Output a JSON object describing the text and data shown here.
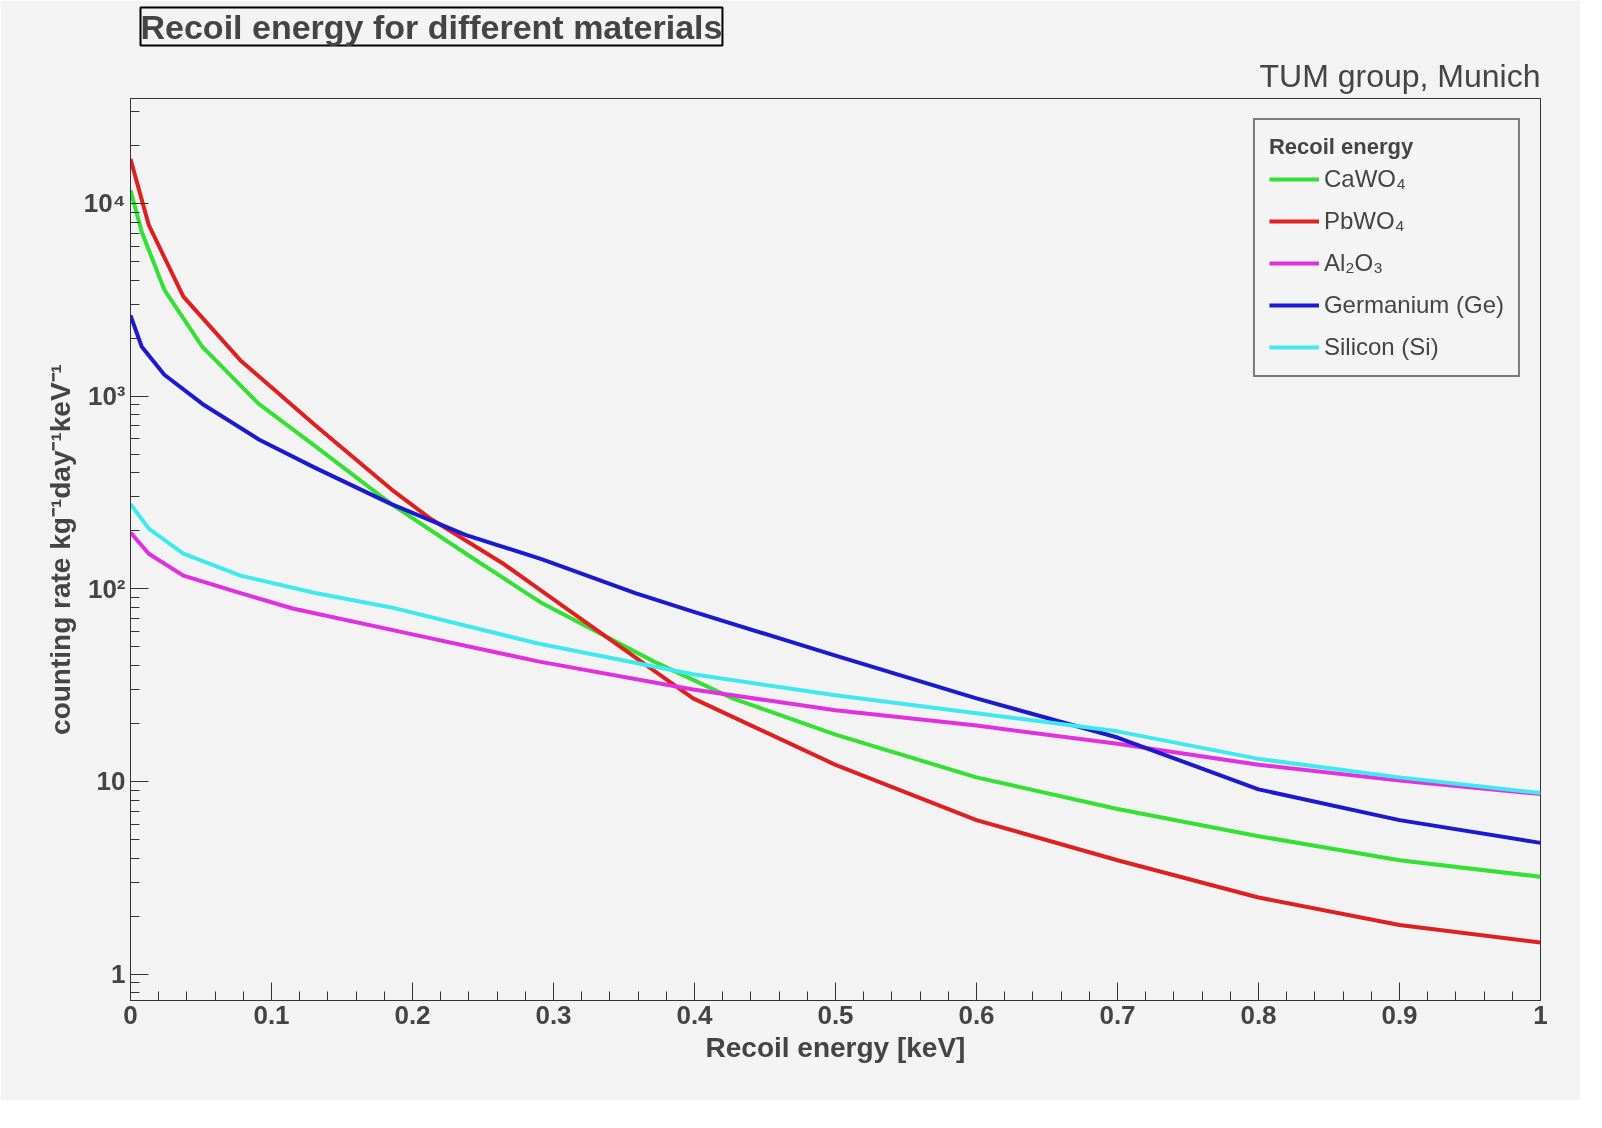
{
  "chart_data": {
    "type": "line",
    "title": "Recoil energy for different materials",
    "xlabel": "Recoil energy [keV]",
    "ylabel": "counting rate kg⁻¹day⁻¹keV⁻¹",
    "legend_title": "Recoil energy",
    "annotations": [
      "TUM group, Munich"
    ],
    "log": "y",
    "legend": "top right",
    "grid": false,
    "line_style": "solid",
    "xlim": [
      0,
      1
    ],
    "xticks": [
      0,
      0.1,
      0.2,
      0.3,
      0.4,
      0.5,
      0.6,
      0.7,
      0.8,
      0.9,
      1
    ],
    "ylim": [
      0.73,
      35000
    ],
    "yticks": [
      1,
      10,
      {
        "value": 100,
        "label": "10²"
      },
      {
        "value": 1000,
        "label": "10³"
      },
      {
        "value": 10000,
        "label": "10⁴"
      }
    ],
    "series": [
      {
        "name": "CaWO₄",
        "color": "#33e033",
        "x": [
          0,
          0.008,
          0.024,
          0.051,
          0.091,
          0.131,
          0.185,
          0.238,
          0.292,
          0.371,
          0.427,
          0.5,
          0.6,
          0.7,
          0.8,
          0.9,
          1
        ],
        "values": [
          11700,
          7100,
          3560,
          1800,
          910,
          550,
          275,
          152,
          84,
          42,
          27,
          17.5,
          10.5,
          7.2,
          5.2,
          3.9,
          3.2
        ]
      },
      {
        "name": "PbWO₄",
        "color": "#e02020",
        "x": [
          0,
          0.013,
          0.0375,
          0.078,
          0.131,
          0.185,
          0.212,
          0.265,
          0.3,
          0.399,
          0.5,
          0.6,
          0.7,
          0.8,
          0.9,
          1
        ],
        "values": [
          17000,
          7700,
          3280,
          1530,
          706,
          328,
          233,
          134,
          88,
          27,
          12.2,
          6.3,
          3.9,
          2.5,
          1.8,
          1.46
        ]
      },
      {
        "name": "Al₂O₃",
        "color": "#e030e0",
        "x": [
          0,
          0.013,
          0.0375,
          0.078,
          0.115,
          0.2,
          0.289,
          0.399,
          0.5,
          0.6,
          0.7,
          0.8,
          0.9,
          1
        ],
        "values": [
          196,
          152,
          117,
          95,
          79,
          58,
          42,
          30,
          23.4,
          19.5,
          15.7,
          12.2,
          10.1,
          8.6
        ]
      },
      {
        "name": "Germanium (Ge)",
        "color": "#1a1ad0",
        "x": [
          0,
          0.008,
          0.024,
          0.051,
          0.091,
          0.131,
          0.185,
          0.238,
          0.292,
          0.358,
          0.399,
          0.5,
          0.6,
          0.7,
          0.8,
          0.9,
          1
        ],
        "values": [
          2620,
          1800,
          1290,
          910,
          595,
          424,
          275,
          190,
          142,
          95,
          76,
          45,
          27,
          16.9,
          9.1,
          6.3,
          4.8
        ]
      },
      {
        "name": "Silicon (Si)",
        "color": "#40e8f0",
        "x": [
          0,
          0.013,
          0.0375,
          0.078,
          0.131,
          0.185,
          0.289,
          0.399,
          0.5,
          0.6,
          0.7,
          0.8,
          0.9,
          1
        ],
        "values": [
          275,
          205,
          152,
          117,
          95,
          80,
          52,
          36,
          28,
          22.6,
          18.2,
          13.1,
          10.5,
          8.7
        ]
      }
    ]
  }
}
